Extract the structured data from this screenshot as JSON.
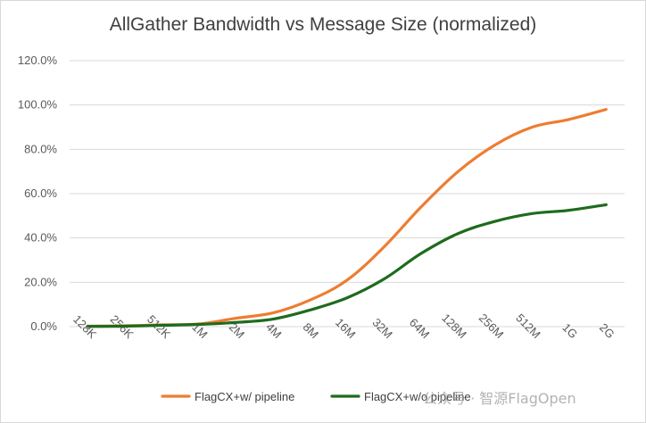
{
  "chart_data": {
    "type": "line",
    "title": "AllGather Bandwidth vs Message Size (normalized)",
    "xlabel": "",
    "ylabel": "",
    "categories": [
      "128K",
      "256K",
      "512K",
      "1M",
      "2M",
      "4M",
      "8M",
      "16M",
      "32M",
      "64M",
      "128M",
      "256M",
      "512M",
      "1G",
      "2G"
    ],
    "ylim": [
      0,
      120
    ],
    "yticks": [
      "0.0%",
      "20.0%",
      "40.0%",
      "60.0%",
      "80.0%",
      "100.0%",
      "120.0%"
    ],
    "grid": true,
    "legend_position": "bottom",
    "series": [
      {
        "name": "FlagCX+w/ pipeline",
        "color": "#ed7d31",
        "values": [
          0.2,
          0.4,
          0.8,
          1.2,
          3.8,
          6.2,
          12,
          21,
          36,
          54,
          70,
          82,
          90,
          93.5,
          98
        ]
      },
      {
        "name": "FlagCX+w/o pipeline",
        "color": "#1e6b1e",
        "values": [
          0.1,
          0.2,
          0.6,
          1.0,
          1.9,
          3.4,
          7.5,
          13,
          21.5,
          33,
          42,
          47.5,
          51,
          52.5,
          55
        ]
      }
    ]
  },
  "watermark": {
    "text": "公众号 · 智源FlagOpen"
  }
}
